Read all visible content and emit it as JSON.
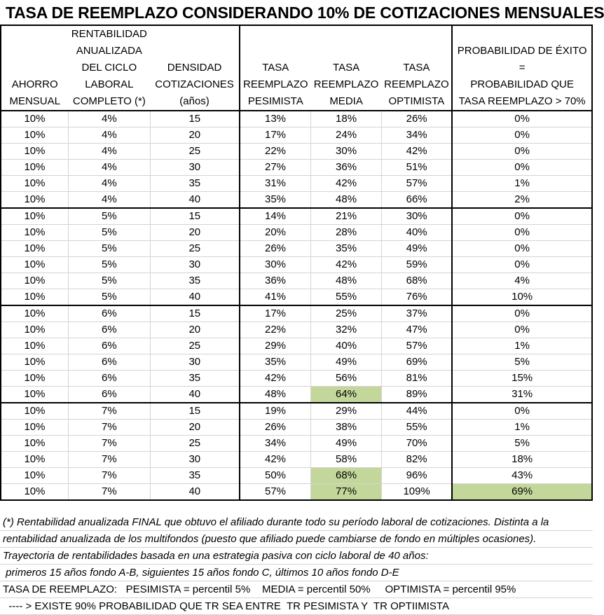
{
  "title": "TASA DE REEMPLAZO CONSIDERANDO 10% DE COTIZACIONES MENSUALES",
  "headers": [
    [
      "AHORRO",
      "MENSUAL"
    ],
    [
      "RENTABILIDAD",
      "ANUALIZADA",
      "DEL CICLO",
      "LABORAL",
      "COMPLETO (*)"
    ],
    [
      "DENSIDAD",
      "COTIZACIONES",
      "(años)"
    ],
    [
      "TASA",
      "REEMPLAZO",
      "PESIMISTA"
    ],
    [
      "TASA",
      "REEMPLAZO",
      "MEDIA"
    ],
    [
      "TASA",
      "REEMPLAZO",
      "OPTIMISTA"
    ],
    [
      "PROBABILIDAD DE ÉXITO",
      "=",
      "PROBABILIDAD QUE",
      "TASA REEMPLAZO > 70%"
    ]
  ],
  "rows": [
    [
      "10%",
      "4%",
      "15",
      "13%",
      "18%",
      "26%",
      "0%"
    ],
    [
      "10%",
      "4%",
      "20",
      "17%",
      "24%",
      "34%",
      "0%"
    ],
    [
      "10%",
      "4%",
      "25",
      "22%",
      "30%",
      "42%",
      "0%"
    ],
    [
      "10%",
      "4%",
      "30",
      "27%",
      "36%",
      "51%",
      "0%"
    ],
    [
      "10%",
      "4%",
      "35",
      "31%",
      "42%",
      "57%",
      "1%"
    ],
    [
      "10%",
      "4%",
      "40",
      "35%",
      "48%",
      "66%",
      "2%"
    ],
    [
      "10%",
      "5%",
      "15",
      "14%",
      "21%",
      "30%",
      "0%"
    ],
    [
      "10%",
      "5%",
      "20",
      "20%",
      "28%",
      "40%",
      "0%"
    ],
    [
      "10%",
      "5%",
      "25",
      "26%",
      "35%",
      "49%",
      "0%"
    ],
    [
      "10%",
      "5%",
      "30",
      "30%",
      "42%",
      "59%",
      "0%"
    ],
    [
      "10%",
      "5%",
      "35",
      "36%",
      "48%",
      "68%",
      "4%"
    ],
    [
      "10%",
      "5%",
      "40",
      "41%",
      "55%",
      "76%",
      "10%"
    ],
    [
      "10%",
      "6%",
      "15",
      "17%",
      "25%",
      "37%",
      "0%"
    ],
    [
      "10%",
      "6%",
      "20",
      "22%",
      "32%",
      "47%",
      "0%"
    ],
    [
      "10%",
      "6%",
      "25",
      "29%",
      "40%",
      "57%",
      "1%"
    ],
    [
      "10%",
      "6%",
      "30",
      "35%",
      "49%",
      "69%",
      "5%"
    ],
    [
      "10%",
      "6%",
      "35",
      "42%",
      "56%",
      "81%",
      "15%"
    ],
    [
      "10%",
      "6%",
      "40",
      "48%",
      "64%",
      "89%",
      "31%"
    ],
    [
      "10%",
      "7%",
      "15",
      "19%",
      "29%",
      "44%",
      "0%"
    ],
    [
      "10%",
      "7%",
      "20",
      "26%",
      "38%",
      "55%",
      "1%"
    ],
    [
      "10%",
      "7%",
      "25",
      "34%",
      "49%",
      "70%",
      "5%"
    ],
    [
      "10%",
      "7%",
      "30",
      "42%",
      "58%",
      "82%",
      "18%"
    ],
    [
      "10%",
      "7%",
      "35",
      "50%",
      "68%",
      "96%",
      "43%"
    ],
    [
      "10%",
      "7%",
      "40",
      "57%",
      "77%",
      "109%",
      "69%"
    ]
  ],
  "highlights": [
    [
      17,
      4
    ],
    [
      22,
      4
    ],
    [
      23,
      4
    ],
    [
      23,
      6
    ]
  ],
  "highlight_color": "#c4d79b",
  "notes": [
    "(*) Rentabilidad anualizada FINAL que obtuvo el afiliado durante todo su período laboral de cotizaciones. Distinta a la",
    "rentabilidad anualizada de los multifondos (puesto que afiliado puede cambiarse de fondo en múltiples ocasiones).",
    "Trayectoria de rentabilidades basada en una estrategia pasiva con ciclo laboral de 40 años:",
    " primeros 15 años fondo A-B, siguientes 15 años fondo C, últimos 10 años fondo D-E",
    "TASA DE REEMPLAZO:   PESIMISTA = percentil 5%    MEDIA = percentil 50%     OPTIMISTA = percentil 95%",
    "  ---- > EXISTE 90% PROBABILIDAD QUE TR SEA ENTRE  TR PESIMISTA Y  TR OPTIIMISTA"
  ]
}
